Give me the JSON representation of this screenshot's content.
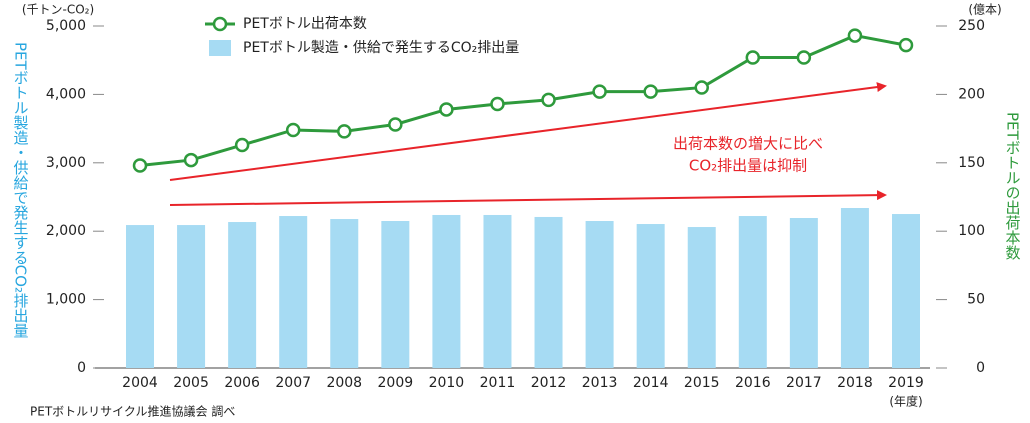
{
  "chart_data": {
    "type": "bar",
    "y_unit": "(千トン-CO₂)",
    "y2_unit": "(億本)",
    "ylabel": "PETボトル製造・供給で発生するCO₂排出量",
    "y2label": "PETボトルの出荷本数",
    "x_unit": "(年度)",
    "source": "PETボトルリサイクル推進協議会 調べ",
    "annotation": [
      "出荷本数の増大に比べ",
      "CO₂排出量は抑制"
    ],
    "categories": [
      "2004",
      "2005",
      "2006",
      "2007",
      "2008",
      "2009",
      "2010",
      "2011",
      "2012",
      "2013",
      "2014",
      "2015",
      "2016",
      "2017",
      "2018",
      "2019"
    ],
    "series": [
      {
        "name": "PETボトル出荷本数",
        "type": "line",
        "axis": "y2",
        "color": "#2e9a3c",
        "values": [
          148,
          152,
          163,
          174,
          173,
          178,
          189,
          193,
          196,
          202,
          202,
          205,
          227,
          227,
          243,
          236
        ]
      },
      {
        "name": "PETボトル製造・供給で発生するCO₂排出量",
        "type": "bar",
        "axis": "y",
        "color": "#a6dbf3",
        "values": [
          2090,
          2090,
          2134,
          2222,
          2178,
          2149,
          2237,
          2237,
          2208,
          2149,
          2105,
          2061,
          2222,
          2193,
          2339,
          2251
        ]
      }
    ],
    "ylim": [
      0,
      5000
    ],
    "yticks": [
      0,
      {
        "value": 1000,
        "label": "1,000"
      },
      {
        "value": 2000,
        "label": "2,000"
      },
      {
        "value": 3000,
        "label": "3,000"
      },
      {
        "value": 4000,
        "label": "4,000"
      },
      {
        "value": 5000,
        "label": "5,000"
      }
    ],
    "y2lim": [
      0,
      250
    ],
    "y2ticks": [
      0,
      50,
      100,
      150,
      200,
      250
    ],
    "grid": false
  }
}
